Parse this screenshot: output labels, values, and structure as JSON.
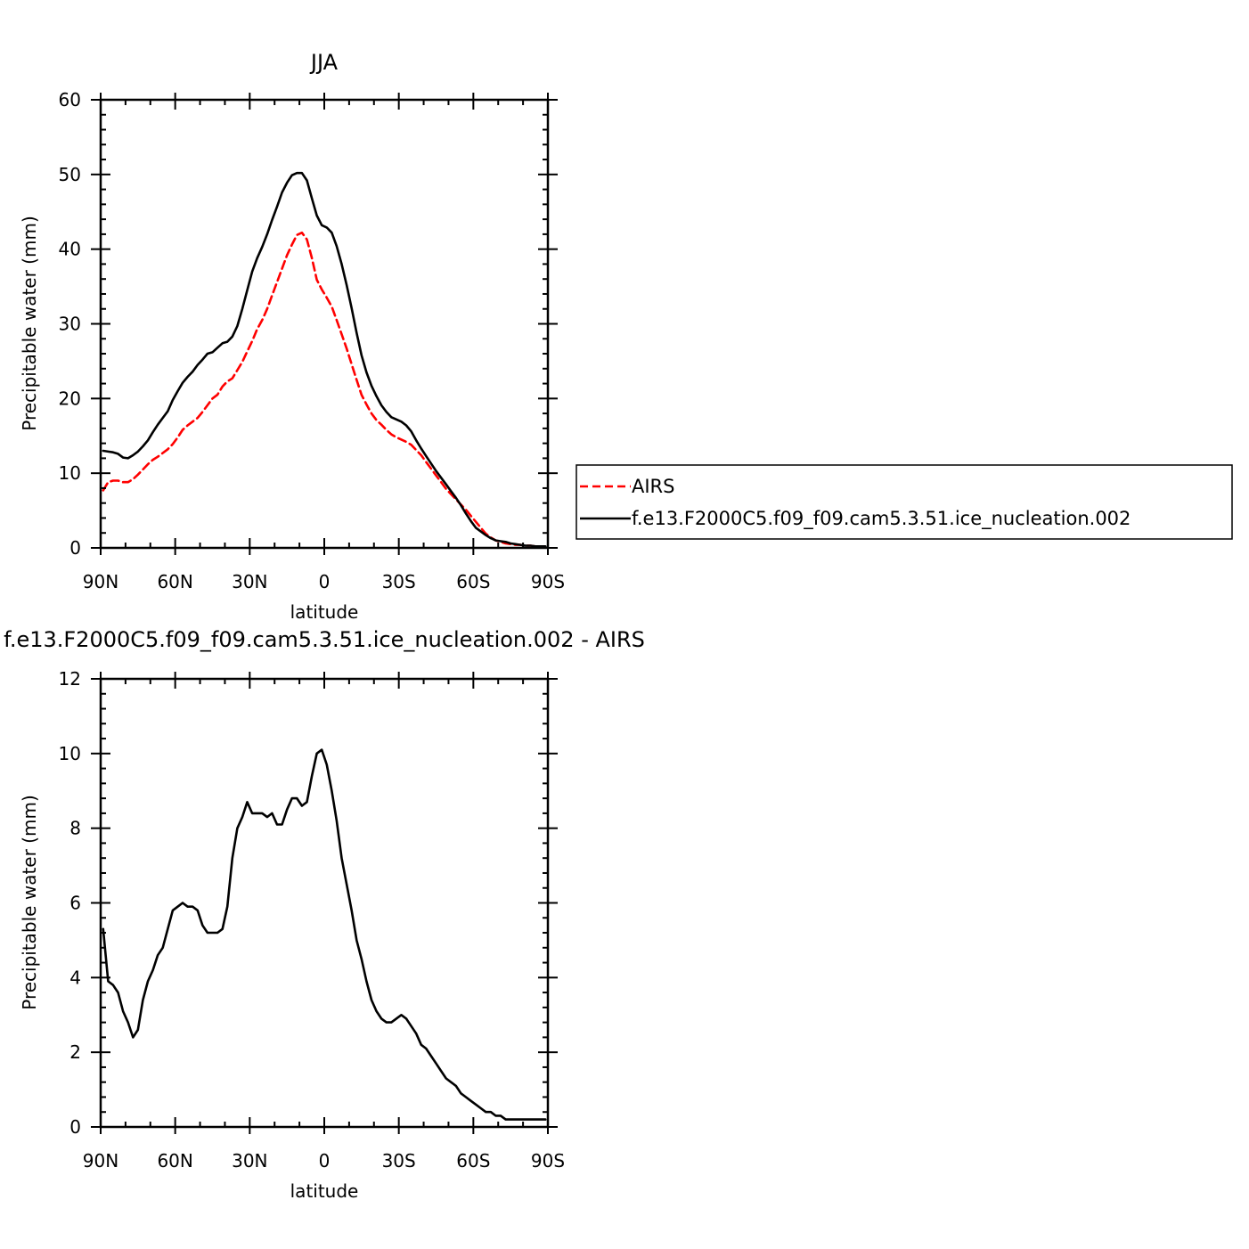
{
  "chart_data": [
    {
      "type": "line",
      "title": "JJA",
      "xlabel": "latitude",
      "ylabel": "Precipitable water (mm)",
      "xlim": [
        90,
        -90
      ],
      "ylim": [
        0,
        60
      ],
      "x_ticks": [
        90,
        60,
        30,
        0,
        -30,
        -60,
        -90
      ],
      "x_tick_labels": [
        "90N",
        "60N",
        "30N",
        "0",
        "30S",
        "60S",
        "90S"
      ],
      "y_ticks": [
        0,
        10,
        20,
        30,
        40,
        50,
        60
      ],
      "y_tick_labels": [
        "0",
        "10",
        "20",
        "30",
        "40",
        "50",
        "60"
      ],
      "legend_position": "right",
      "series": [
        {
          "name": "AIRS",
          "color": "#ff0000",
          "dash": "dashed",
          "x": [
            89,
            87,
            85,
            83,
            81,
            79,
            77,
            75,
            73,
            71,
            69,
            67,
            65,
            63,
            61,
            59,
            57,
            55,
            53,
            51,
            49,
            47,
            45,
            43,
            41,
            39,
            37,
            35,
            33,
            31,
            29,
            27,
            25,
            23,
            21,
            19,
            17,
            15,
            13,
            11,
            9,
            7,
            5,
            3,
            1,
            -1,
            -3,
            -5,
            -7,
            -9,
            -11,
            -13,
            -15,
            -17,
            -19,
            -21,
            -23,
            -25,
            -27,
            -29,
            -31,
            -33,
            -35,
            -37,
            -39,
            -41,
            -43,
            -45,
            -47,
            -49,
            -51,
            -53,
            -55,
            -57,
            -59,
            -61,
            -63,
            -65,
            -67,
            -69,
            -71,
            -73,
            -75,
            -77,
            -79,
            -81,
            -83,
            -85,
            -87,
            -89
          ],
          "y": [
            7.7,
            8.8,
            9.0,
            9.0,
            8.8,
            8.8,
            9.2,
            9.8,
            10.5,
            11.2,
            11.8,
            12.2,
            12.7,
            13.2,
            13.9,
            14.8,
            15.8,
            16.4,
            16.9,
            17.4,
            18.2,
            19.1,
            20.0,
            20.5,
            21.6,
            22.3,
            22.7,
            23.8,
            24.9,
            26.3,
            27.7,
            29.3,
            30.5,
            32.0,
            33.8,
            35.6,
            37.4,
            39.2,
            40.6,
            41.9,
            42.2,
            41.3,
            38.8,
            35.9,
            34.6,
            33.5,
            32.3,
            30.5,
            28.6,
            26.7,
            24.6,
            22.5,
            20.5,
            19.2,
            18.0,
            17.1,
            16.5,
            15.8,
            15.2,
            14.8,
            14.5,
            14.2,
            13.8,
            13.1,
            12.4,
            11.5,
            10.6,
            9.7,
            8.8,
            7.9,
            7.2,
            6.5,
            5.8,
            5.1,
            4.3,
            3.5,
            2.7,
            1.9,
            1.4,
            1.0,
            0.8,
            0.6,
            0.5,
            0.4,
            0.4,
            0.3,
            0.3,
            0.2,
            0.2,
            0.1
          ]
        },
        {
          "name": "f.e13.F2000C5.f09_f09.cam5.3.51.ice_nucleation.002",
          "color": "#000000",
          "dash": "solid",
          "x": [
            89,
            87,
            85,
            83,
            81,
            79,
            77,
            75,
            73,
            71,
            69,
            67,
            65,
            63,
            61,
            59,
            57,
            55,
            53,
            51,
            49,
            47,
            45,
            43,
            41,
            39,
            37,
            35,
            33,
            31,
            29,
            27,
            25,
            23,
            21,
            19,
            17,
            15,
            13,
            11,
            9,
            7,
            5,
            3,
            1,
            -1,
            -3,
            -5,
            -7,
            -9,
            -11,
            -13,
            -15,
            -17,
            -19,
            -21,
            -23,
            -25,
            -27,
            -29,
            -31,
            -33,
            -35,
            -37,
            -39,
            -41,
            -43,
            -45,
            -47,
            -49,
            -51,
            -53,
            -55,
            -57,
            -59,
            -61,
            -63,
            -65,
            -67,
            -69,
            -71,
            -73,
            -75,
            -77,
            -79,
            -81,
            -83,
            -85,
            -87,
            -89
          ],
          "y": [
            13.0,
            12.9,
            12.8,
            12.6,
            12.1,
            12.0,
            12.4,
            12.9,
            13.6,
            14.4,
            15.5,
            16.5,
            17.4,
            18.3,
            19.8,
            21.0,
            22.1,
            22.9,
            23.6,
            24.5,
            25.2,
            26.0,
            26.2,
            26.8,
            27.4,
            27.6,
            28.3,
            29.7,
            32.0,
            34.5,
            37.0,
            38.8,
            40.3,
            42.0,
            43.9,
            45.7,
            47.6,
            48.9,
            49.9,
            50.2,
            50.2,
            49.2,
            46.8,
            44.5,
            43.2,
            42.9,
            42.2,
            40.4,
            38.0,
            35.2,
            32.1,
            28.8,
            25.8,
            23.5,
            21.7,
            20.3,
            19.1,
            18.2,
            17.5,
            17.2,
            16.9,
            16.4,
            15.6,
            14.4,
            13.3,
            12.3,
            11.3,
            10.3,
            9.4,
            8.5,
            7.6,
            6.7,
            5.7,
            4.6,
            3.6,
            2.7,
            2.2,
            1.7,
            1.3,
            1.0,
            0.9,
            0.8,
            0.6,
            0.5,
            0.4,
            0.3,
            0.3,
            0.2,
            0.2,
            0.2
          ]
        }
      ]
    },
    {
      "type": "line",
      "title": "f.e13.F2000C5.f09_f09.cam5.3.51.ice_nucleation.002 - AIRS",
      "xlabel": "latitude",
      "ylabel": "Precipitable water (mm)",
      "xlim": [
        90,
        -90
      ],
      "ylim": [
        0,
        12
      ],
      "x_ticks": [
        90,
        60,
        30,
        0,
        -30,
        -60,
        -90
      ],
      "x_tick_labels": [
        "90N",
        "60N",
        "30N",
        "0",
        "30S",
        "60S",
        "90S"
      ],
      "y_ticks": [
        0,
        2,
        4,
        6,
        8,
        10,
        12
      ],
      "y_tick_labels": [
        "0",
        "2",
        "4",
        "6",
        "8",
        "10",
        "12"
      ],
      "series": [
        {
          "color": "#000000",
          "dash": "solid",
          "x": [
            89,
            87,
            85,
            83,
            81,
            79,
            77,
            75,
            73,
            71,
            69,
            67,
            65,
            63,
            61,
            59,
            57,
            55,
            53,
            51,
            49,
            47,
            45,
            43,
            41,
            39,
            37,
            35,
            33,
            31,
            29,
            27,
            25,
            23,
            21,
            19,
            17,
            15,
            13,
            11,
            9,
            7,
            5,
            3,
            1,
            -1,
            -3,
            -5,
            -7,
            -9,
            -11,
            -13,
            -15,
            -17,
            -19,
            -21,
            -23,
            -25,
            -27,
            -29,
            -31,
            -33,
            -35,
            -37,
            -39,
            -41,
            -43,
            -45,
            -47,
            -49,
            -51,
            -53,
            -55,
            -57,
            -59,
            -61,
            -63,
            -65,
            -67,
            -69,
            -71,
            -73,
            -75,
            -77,
            -79,
            -81,
            -83,
            -85,
            -87,
            -89
          ],
          "y": [
            5.3,
            3.9,
            3.8,
            3.6,
            3.1,
            2.8,
            2.4,
            2.6,
            3.4,
            3.9,
            4.2,
            4.6,
            4.8,
            5.3,
            5.8,
            5.9,
            6.0,
            5.9,
            5.9,
            5.8,
            5.4,
            5.2,
            5.2,
            5.2,
            5.3,
            5.9,
            7.2,
            8.0,
            8.3,
            8.7,
            8.4,
            8.4,
            8.4,
            8.3,
            8.4,
            8.1,
            8.1,
            8.5,
            8.8,
            8.8,
            8.6,
            8.7,
            9.4,
            10.0,
            10.1,
            9.7,
            9.0,
            8.2,
            7.2,
            6.5,
            5.8,
            5.0,
            4.5,
            3.9,
            3.4,
            3.1,
            2.9,
            2.8,
            2.8,
            2.9,
            3.0,
            2.9,
            2.7,
            2.5,
            2.2,
            2.1,
            1.9,
            1.7,
            1.5,
            1.3,
            1.2,
            1.1,
            0.9,
            0.8,
            0.7,
            0.6,
            0.5,
            0.4,
            0.4,
            0.3,
            0.3,
            0.2,
            0.2,
            0.2,
            0.2,
            0.2,
            0.2,
            0.2,
            0.2,
            0.2
          ]
        }
      ]
    }
  ]
}
